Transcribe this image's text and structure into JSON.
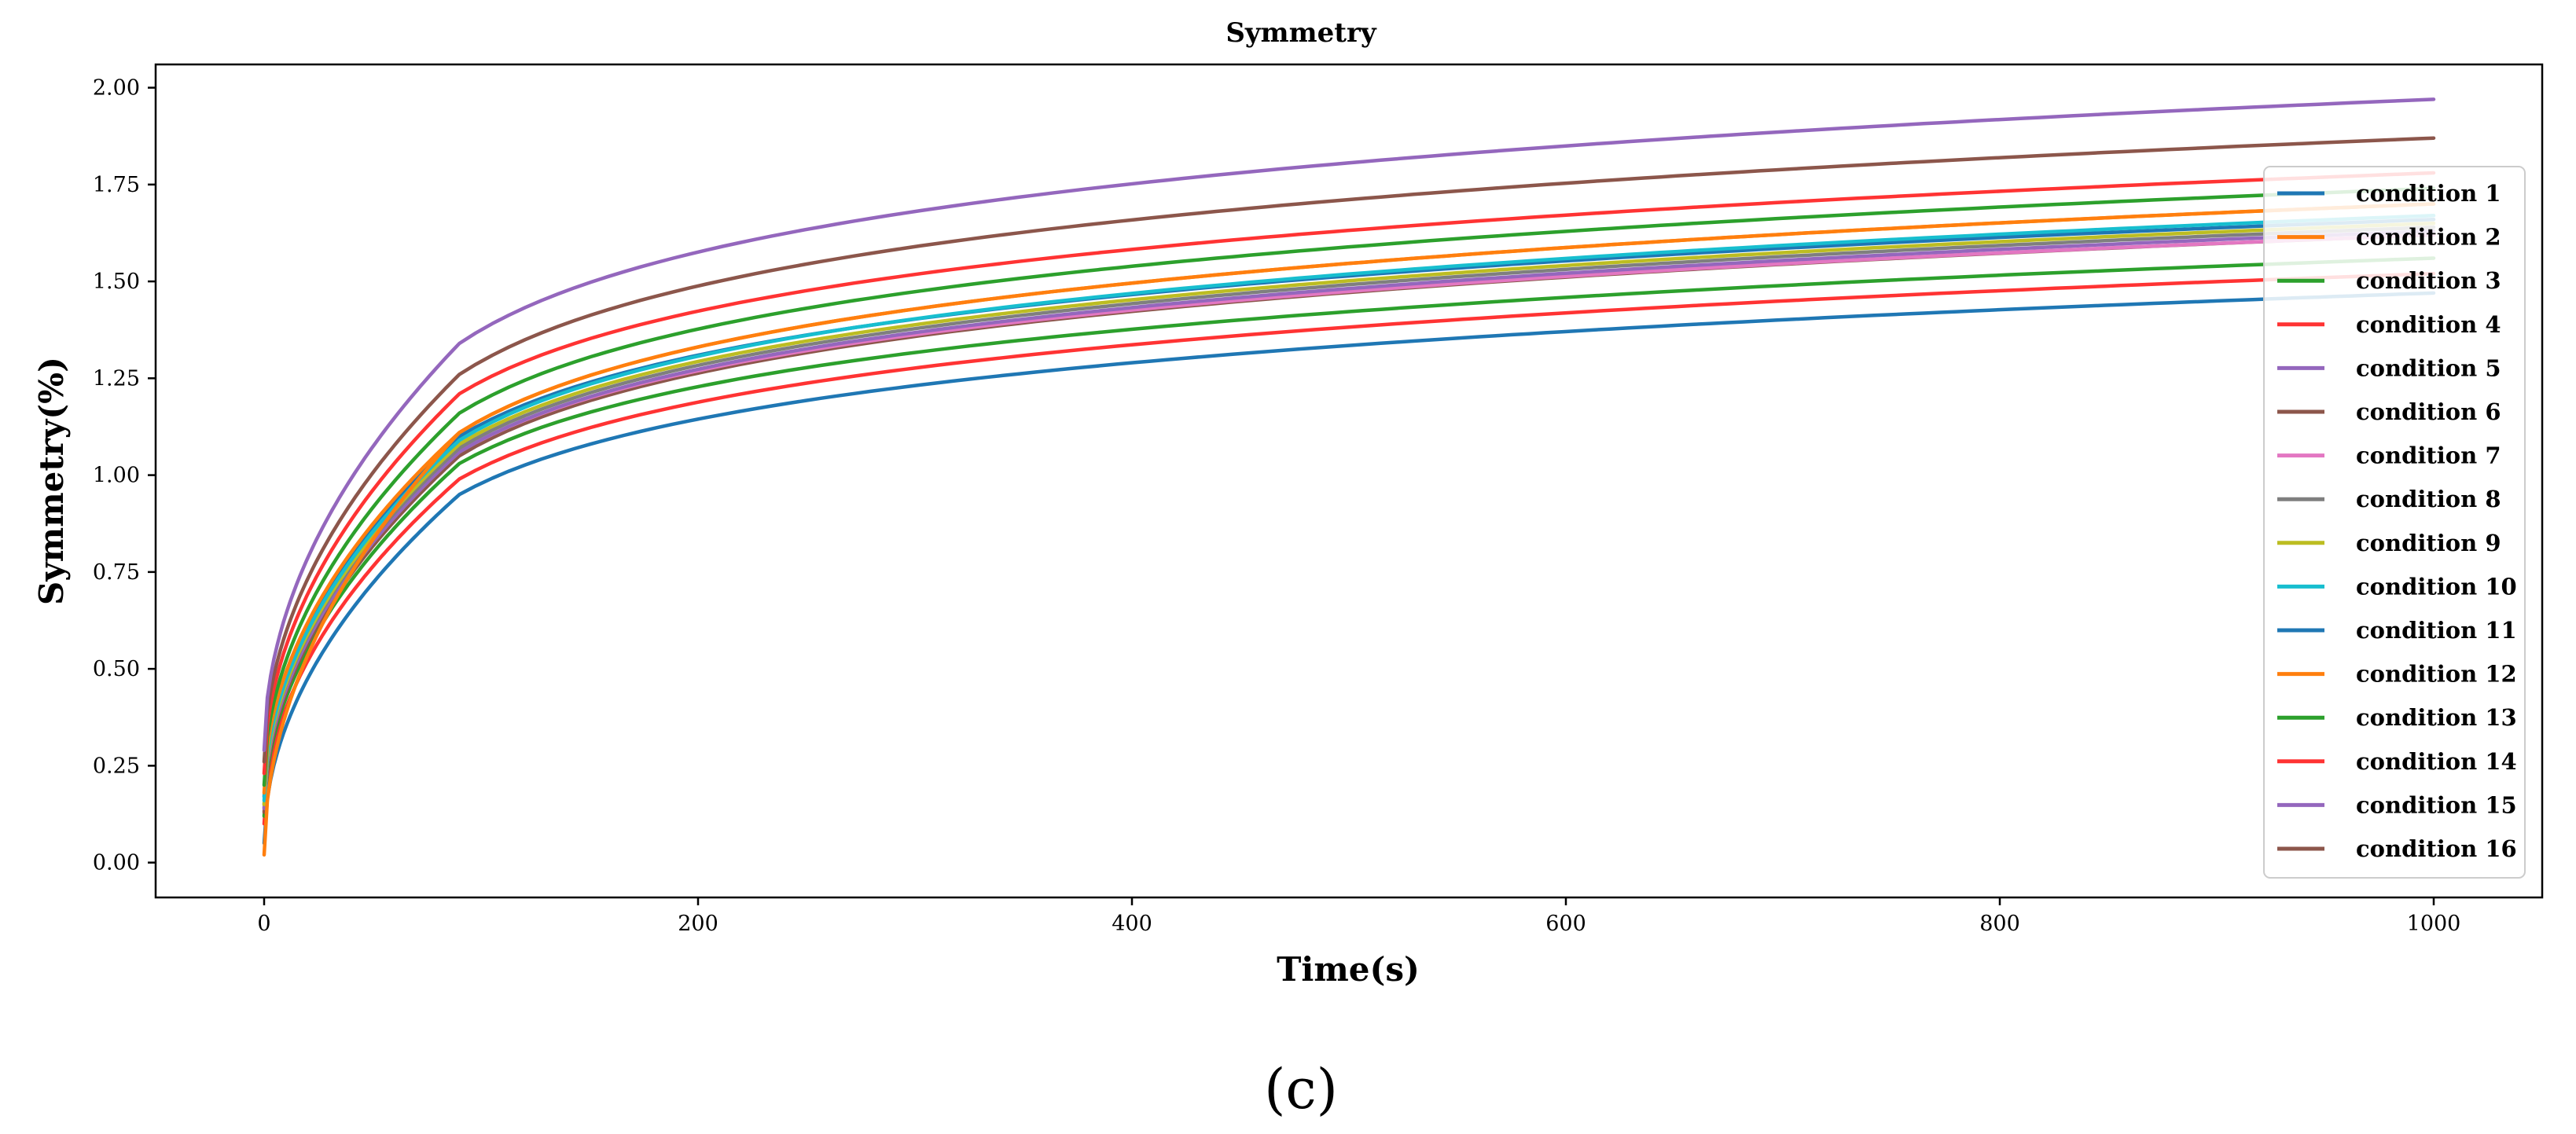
{
  "panel_label": "(c)",
  "chart_data": {
    "type": "line",
    "title": "Symmetry",
    "xlabel": "Time(s)",
    "ylabel": "Symmetry(%)",
    "xlim": [
      -50,
      1050
    ],
    "ylim": [
      -0.09,
      2.06
    ],
    "xticks": [
      0,
      200,
      400,
      600,
      800,
      1000
    ],
    "xtick_labels": [
      "0",
      "200",
      "400",
      "600",
      "800",
      "1000"
    ],
    "yticks": [
      0.0,
      0.25,
      0.5,
      0.75,
      1.0,
      1.25,
      1.5,
      1.75,
      2.0
    ],
    "ytick_labels": [
      "0.00",
      "0.25",
      "0.50",
      "0.75",
      "1.00",
      "1.25",
      "1.50",
      "1.75",
      "2.00"
    ],
    "grid": false,
    "legend_position": "right",
    "knee_x": 90,
    "series": [
      {
        "name": "condition 1",
        "color": "#1f77b4",
        "start": 0.05,
        "knee": 0.95,
        "end": 1.47
      },
      {
        "name": "condition 2",
        "color": "#ff7f0e",
        "start": 0.02,
        "knee": 1.11,
        "end": 1.7
      },
      {
        "name": "condition 3",
        "color": "#2ca02c",
        "start": 0.12,
        "knee": 1.03,
        "end": 1.56
      },
      {
        "name": "condition 4",
        "color": "#ff3333",
        "start": 0.1,
        "knee": 0.99,
        "end": 1.52
      },
      {
        "name": "condition 5",
        "color": "#9467bd",
        "start": 0.14,
        "knee": 1.06,
        "end": 1.63
      },
      {
        "name": "condition 6",
        "color": "#8c564b",
        "start": 0.13,
        "knee": 1.05,
        "end": 1.62
      },
      {
        "name": "condition 7",
        "color": "#e377c2",
        "start": 0.14,
        "knee": 1.06,
        "end": 1.62
      },
      {
        "name": "condition 8",
        "color": "#7f7f7f",
        "start": 0.15,
        "knee": 1.07,
        "end": 1.64
      },
      {
        "name": "condition 9",
        "color": "#bcbd22",
        "start": 0.15,
        "knee": 1.08,
        "end": 1.65
      },
      {
        "name": "condition 10",
        "color": "#17becf",
        "start": 0.16,
        "knee": 1.09,
        "end": 1.67
      },
      {
        "name": "condition 11",
        "color": "#1f77b4",
        "start": 0.17,
        "knee": 1.1,
        "end": 1.66
      },
      {
        "name": "condition 12",
        "color": "#ff7f0e",
        "start": 0.18,
        "knee": 1.11,
        "end": 1.7
      },
      {
        "name": "condition 13",
        "color": "#2ca02c",
        "start": 0.2,
        "knee": 1.16,
        "end": 1.74
      },
      {
        "name": "condition 14",
        "color": "#ff3333",
        "start": 0.23,
        "knee": 1.21,
        "end": 1.78
      },
      {
        "name": "condition 15",
        "color": "#9467bd",
        "start": 0.29,
        "knee": 1.34,
        "end": 1.97
      },
      {
        "name": "condition 16",
        "color": "#8c564b",
        "start": 0.26,
        "knee": 1.26,
        "end": 1.87
      }
    ]
  }
}
